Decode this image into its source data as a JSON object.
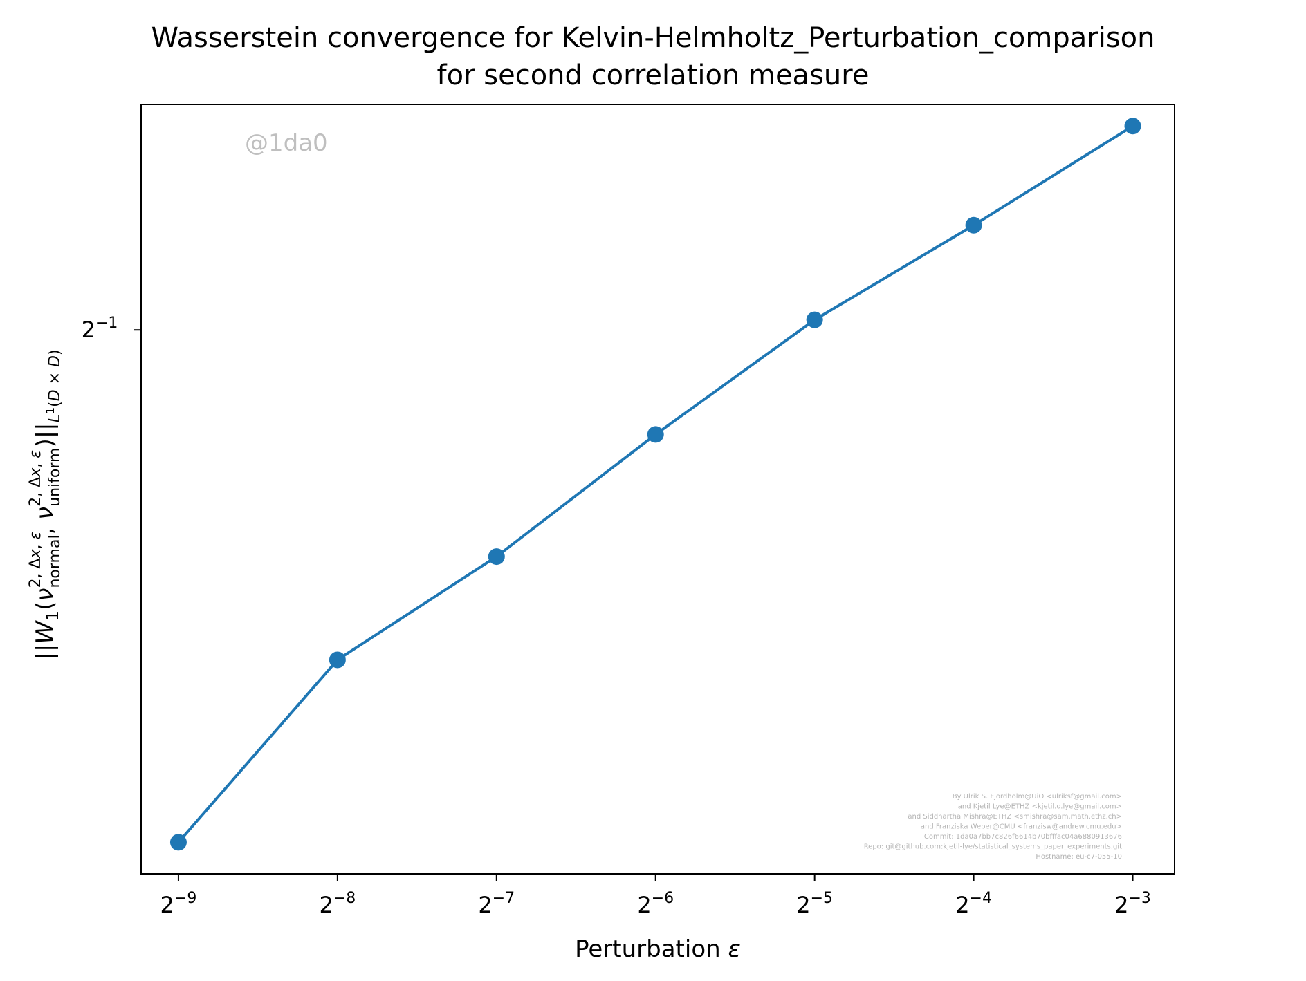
{
  "chart_data": {
    "type": "line",
    "title_line1": "Wasserstein convergence for Kelvin-Helmholtz_Perturbation_comparison",
    "title_line2": "for second correlation measure",
    "xlabel": "Perturbation ε",
    "ylabel": "||W₁(ν^{2,Δx,ε}_{normal}, ν^{2,Δx,ε}_{uniform})||_{L¹(D×D)}",
    "xscale": "log2",
    "yscale": "log2",
    "xlim": [
      0.00166,
      0.15
    ],
    "ylim": [
      0.2365,
      0.682
    ],
    "x_ticks": [
      {
        "value": 0.001953125,
        "base": "2",
        "exp": "−9"
      },
      {
        "value": 0.00390625,
        "base": "2",
        "exp": "−8"
      },
      {
        "value": 0.0078125,
        "base": "2",
        "exp": "−7"
      },
      {
        "value": 0.015625,
        "base": "2",
        "exp": "−6"
      },
      {
        "value": 0.03125,
        "base": "2",
        "exp": "−5"
      },
      {
        "value": 0.0625,
        "base": "2",
        "exp": "−4"
      },
      {
        "value": 0.125,
        "base": "2",
        "exp": "−3"
      }
    ],
    "y_ticks": [
      {
        "value": 0.5,
        "base": "2",
        "exp": "−1"
      }
    ],
    "series": [
      {
        "color": "#1f77b4",
        "marker": "circle",
        "x": [
          0.001953125,
          0.00390625,
          0.0078125,
          0.015625,
          0.03125,
          0.0625,
          0.125
        ],
        "y": [
          0.247,
          0.3175,
          0.366,
          0.433,
          0.507,
          0.5775,
          0.662
        ]
      }
    ],
    "grid": false,
    "legend": "none",
    "watermark": "@1da0",
    "credits": [
      "By Ulrik S. Fjordholm@UiO <ulriksf@gmail.com>",
      "and Kjetil Lye@ETHZ <kjetil.o.lye@gmail.com>",
      "and Siddhartha Mishra@ETHZ <smishra@sam.math.ethz.ch>",
      "and Franziska Weber@CMU <franzisw@andrew.cmu.edu>",
      "Commit: 1da0a7bb7c826f6614b70bfffac04a6880913676",
      "Repo: git@github.com:kjetil-lye/statistical_systems_paper_experiments.git",
      "Hostname: eu-c7-055-10"
    ]
  }
}
